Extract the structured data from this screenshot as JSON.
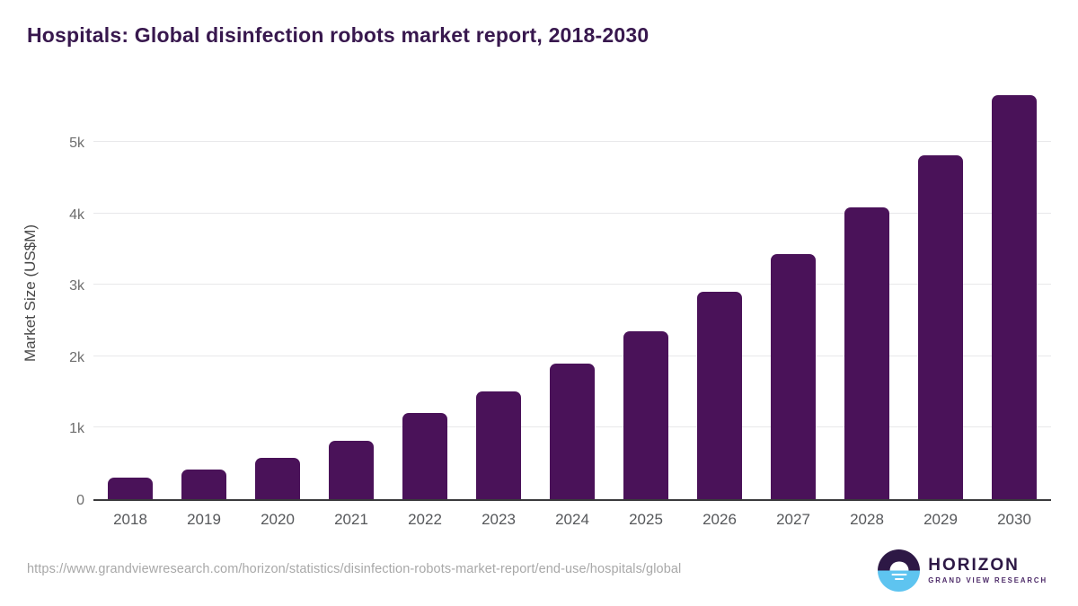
{
  "header": {
    "title": "Hospitals: Global disinfection robots market report, 2018-2030"
  },
  "chart_data": {
    "type": "bar",
    "title": "Hospitals: Global disinfection robots market report, 2018-2030",
    "categories": [
      "2018",
      "2019",
      "2020",
      "2021",
      "2022",
      "2023",
      "2024",
      "2025",
      "2026",
      "2027",
      "2028",
      "2029",
      "2030"
    ],
    "values": [
      300,
      410,
      580,
      820,
      1210,
      1515,
      1900,
      2355,
      2900,
      3435,
      4080,
      4815,
      5655
    ],
    "xlabel": "",
    "ylabel": "Market Size (US$M)",
    "ylim": [
      0,
      5820
    ],
    "yticks": [
      {
        "value": 0,
        "label": "0"
      },
      {
        "value": 1000,
        "label": "1k"
      },
      {
        "value": 2000,
        "label": "2k"
      },
      {
        "value": 3000,
        "label": "3k"
      },
      {
        "value": 4000,
        "label": "4k"
      },
      {
        "value": 5000,
        "label": "5k"
      }
    ],
    "grid": "horizontal",
    "legend": "none",
    "bar_color": "#4a1259"
  },
  "colors": {
    "title": "#38184e",
    "bar": "#4a1259",
    "axis_line": "#3a3a3c",
    "gridline": "#e8e8ea",
    "tick_label": "#6d6d6d",
    "url_text": "#a8a8a8",
    "logo_purple": "#2d1845",
    "logo_blue": "#5ec4f0"
  },
  "footer": {
    "source_url": "https://www.grandviewresearch.com/horizon/statistics/disinfection-robots-market-report/end-use/hospitals/global",
    "logo": {
      "name": "HORIZON",
      "subtitle": "GRAND VIEW RESEARCH",
      "icon": "sun-over-horizon-icon"
    }
  }
}
